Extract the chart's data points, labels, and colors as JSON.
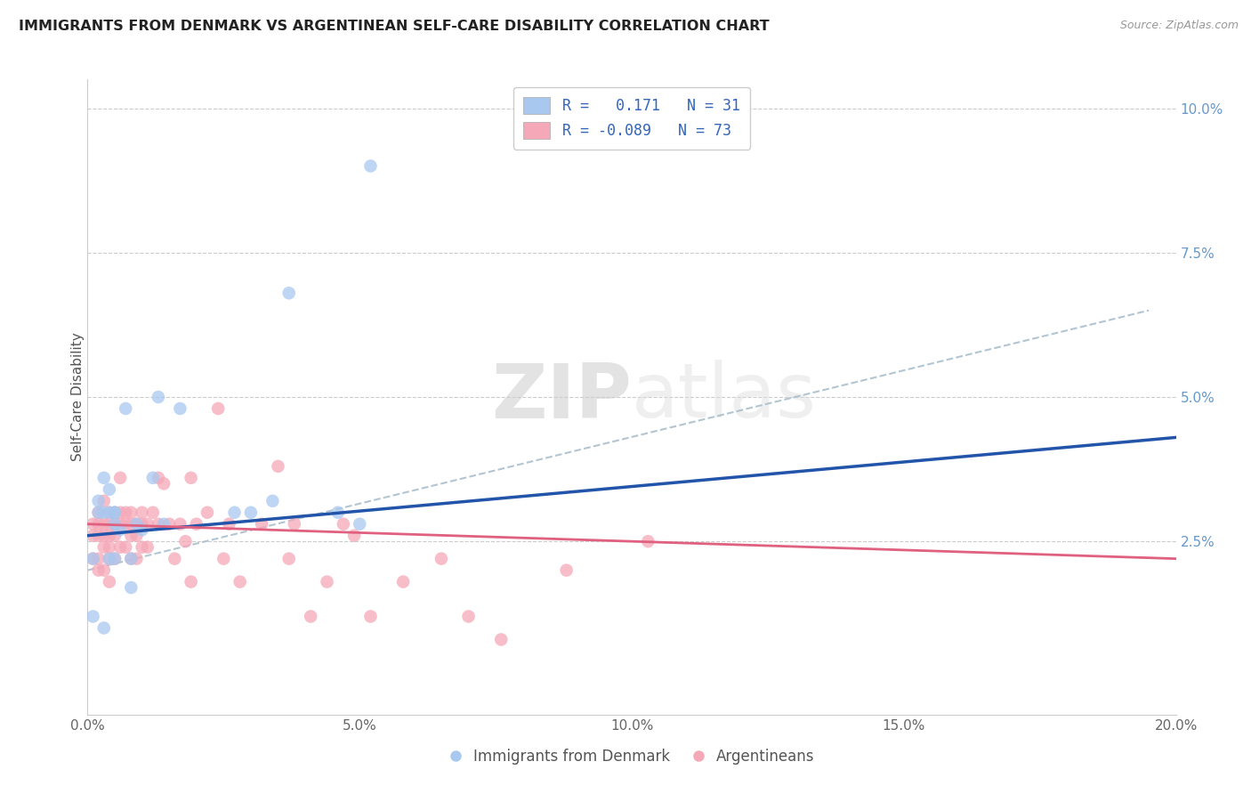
{
  "title": "IMMIGRANTS FROM DENMARK VS ARGENTINEAN SELF-CARE DISABILITY CORRELATION CHART",
  "source": "Source: ZipAtlas.com",
  "xlabel_bottom": [
    "Immigrants from Denmark",
    "Argentineans"
  ],
  "ylabel": "Self-Care Disability",
  "xlim": [
    0.0,
    0.2
  ],
  "ylim": [
    -0.005,
    0.105
  ],
  "xticks": [
    0.0,
    0.05,
    0.1,
    0.15,
    0.2
  ],
  "yticks_right": [
    0.025,
    0.05,
    0.075,
    0.1
  ],
  "ytick_labels_right": [
    "2.5%",
    "5.0%",
    "7.5%",
    "10.0%"
  ],
  "xtick_labels": [
    "0.0%",
    "5.0%",
    "10.0%",
    "15.0%",
    "20.0%"
  ],
  "legend_r1": "R =   0.171   N = 31",
  "legend_r2": "R = -0.089   N = 73",
  "color_blue": "#A8C8F0",
  "color_pink": "#F5A8B8",
  "color_blue_line": "#2255AA",
  "color_pink_line": "#E06080",
  "color_dashed": "#AABFCC",
  "blue_scatter_x": [
    0.001,
    0.001,
    0.002,
    0.002,
    0.003,
    0.003,
    0.003,
    0.004,
    0.004,
    0.004,
    0.005,
    0.005,
    0.005,
    0.005,
    0.006,
    0.007,
    0.008,
    0.008,
    0.009,
    0.01,
    0.012,
    0.013,
    0.014,
    0.017,
    0.027,
    0.03,
    0.034,
    0.037,
    0.046,
    0.05,
    0.052
  ],
  "blue_scatter_y": [
    0.012,
    0.022,
    0.03,
    0.032,
    0.036,
    0.01,
    0.03,
    0.022,
    0.03,
    0.034,
    0.03,
    0.028,
    0.03,
    0.022,
    0.027,
    0.048,
    0.022,
    0.017,
    0.028,
    0.027,
    0.036,
    0.05,
    0.028,
    0.048,
    0.03,
    0.03,
    0.032,
    0.068,
    0.03,
    0.028,
    0.09
  ],
  "pink_scatter_x": [
    0.001,
    0.001,
    0.001,
    0.002,
    0.002,
    0.002,
    0.002,
    0.002,
    0.003,
    0.003,
    0.003,
    0.003,
    0.003,
    0.004,
    0.004,
    0.004,
    0.004,
    0.004,
    0.004,
    0.005,
    0.005,
    0.005,
    0.005,
    0.006,
    0.006,
    0.006,
    0.006,
    0.007,
    0.007,
    0.007,
    0.008,
    0.008,
    0.008,
    0.008,
    0.009,
    0.009,
    0.009,
    0.01,
    0.01,
    0.01,
    0.011,
    0.011,
    0.012,
    0.013,
    0.013,
    0.014,
    0.015,
    0.016,
    0.017,
    0.018,
    0.019,
    0.019,
    0.02,
    0.022,
    0.024,
    0.025,
    0.026,
    0.028,
    0.032,
    0.035,
    0.037,
    0.038,
    0.041,
    0.044,
    0.047,
    0.049,
    0.052,
    0.058,
    0.065,
    0.07,
    0.076,
    0.088,
    0.103
  ],
  "pink_scatter_y": [
    0.028,
    0.026,
    0.022,
    0.03,
    0.028,
    0.026,
    0.022,
    0.02,
    0.032,
    0.028,
    0.026,
    0.024,
    0.02,
    0.03,
    0.028,
    0.026,
    0.024,
    0.022,
    0.018,
    0.03,
    0.028,
    0.026,
    0.022,
    0.036,
    0.03,
    0.028,
    0.024,
    0.03,
    0.028,
    0.024,
    0.03,
    0.028,
    0.026,
    0.022,
    0.028,
    0.026,
    0.022,
    0.03,
    0.028,
    0.024,
    0.028,
    0.024,
    0.03,
    0.036,
    0.028,
    0.035,
    0.028,
    0.022,
    0.028,
    0.025,
    0.036,
    0.018,
    0.028,
    0.03,
    0.048,
    0.022,
    0.028,
    0.018,
    0.028,
    0.038,
    0.022,
    0.028,
    0.012,
    0.018,
    0.028,
    0.026,
    0.012,
    0.018,
    0.022,
    0.012,
    0.008,
    0.02,
    0.025
  ],
  "blue_line_x": [
    0.0,
    0.2
  ],
  "blue_line_y": [
    0.026,
    0.043
  ],
  "pink_line_x": [
    0.0,
    0.2
  ],
  "pink_line_y": [
    0.028,
    0.022
  ],
  "dashed_line_x": [
    0.0,
    0.195
  ],
  "dashed_line_y": [
    0.02,
    0.065
  ],
  "watermark_zip": "ZIP",
  "watermark_atlas": "atlas",
  "bg_color": "#FFFFFF",
  "grid_color": "#CCCCCC"
}
